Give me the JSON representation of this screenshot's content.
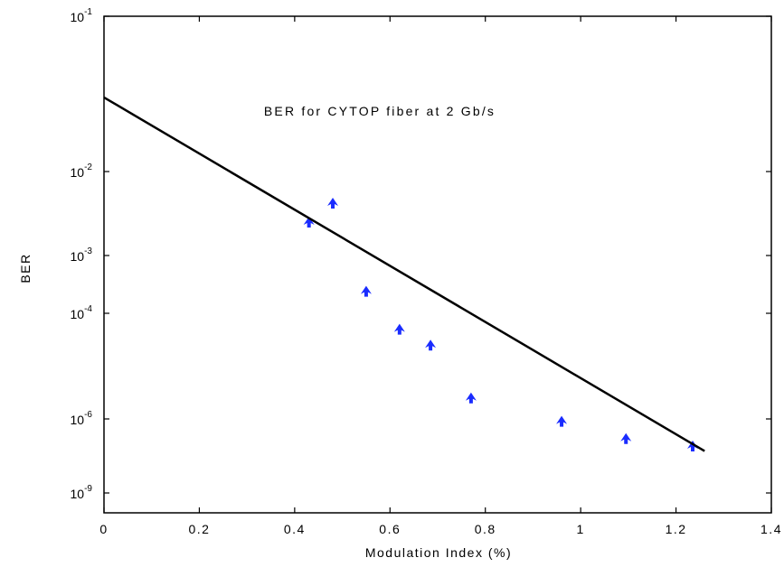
{
  "chart_data": {
    "type": "scatter",
    "title": "BER for CYTOP fiber at 2 Gb/s",
    "xlabel": "Modulation Index (%)",
    "ylabel": "BER",
    "xlim": [
      0,
      1.4
    ],
    "x_ticks": [
      "0",
      "0.2",
      "0.4",
      "0.6",
      "0.8",
      "1",
      "1.2",
      "1.4"
    ],
    "x_tick_values": [
      0,
      0.2,
      0.4,
      0.6,
      0.8,
      1.0,
      1.2,
      1.4
    ],
    "y_ticks": [
      {
        "base": "10",
        "exp": "-1",
        "value": 0.1
      },
      {
        "base": "10",
        "exp": "-2",
        "value": 0.01
      },
      {
        "base": "10",
        "exp": "-3",
        "value": 0.001
      },
      {
        "base": "10",
        "exp": "-4",
        "value": 0.0001
      },
      {
        "base": "10",
        "exp": "-6",
        "value": 1e-06
      },
      {
        "base": "10",
        "exp": "-9",
        "value": 1e-09
      }
    ],
    "grid": false,
    "series": [
      {
        "type": "scatter",
        "marker_color": "#1a2cff",
        "x": [
          0.43,
          0.48,
          0.55,
          0.62,
          0.685,
          0.77,
          0.96,
          1.095,
          1.235
        ],
        "y": [
          0.0025,
          0.0042,
          0.00024,
          5e-05,
          2.5e-05,
          2.5e-06,
          8e-07,
          1.6e-07,
          8e-08
        ]
      },
      {
        "type": "line",
        "line_color": "#000000",
        "x": [
          0,
          1.26
        ],
        "y": [
          0.03,
          5e-08
        ]
      }
    ]
  }
}
